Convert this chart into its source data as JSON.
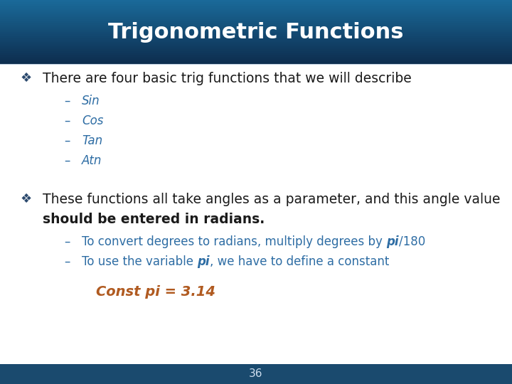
{
  "title": "Trigonometric Functions",
  "title_color": "#ffffff",
  "header_color_top": "#0d2d4e",
  "header_color_bottom": "#1a6a9a",
  "footer_color": "#1a4a6e",
  "bg_color": "#ffffff",
  "bullet_color": "#1a1a1a",
  "sub_color": "#2e6da4",
  "const_color": "#b05a20",
  "bullet_symbol": "❖",
  "bullet1": "There are four basic trig functions that we will describe",
  "sub_items1": [
    "Sin",
    "Cos",
    "Tan",
    "Atn"
  ],
  "bullet2_line1": "These functions all take angles as a parameter, and this angle value",
  "bullet2_line2": "should be entered in radians.",
  "sub2_line1_pre": "To convert degrees to radians, multiply degrees by ",
  "sub2_line1_italic": "pi",
  "sub2_line1_post": "/180",
  "sub2_line2_pre": "To use the variable ",
  "sub2_line2_italic": "pi",
  "sub2_line2_post": ", we have to define a constant",
  "const_text": "Const pi = 3.14",
  "footer_text": "36",
  "fig_w": 7.2,
  "fig_h": 5.4,
  "dpi": 100
}
